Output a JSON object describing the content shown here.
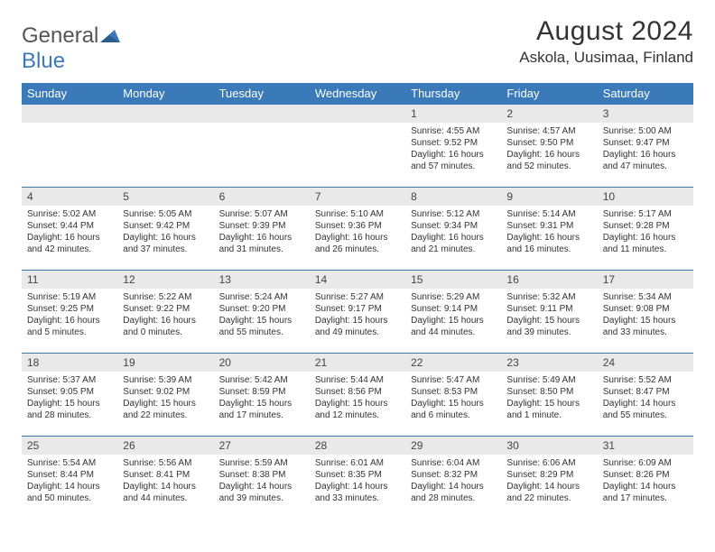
{
  "logo": {
    "text_general": "General",
    "text_blue": "Blue"
  },
  "header": {
    "month_title": "August 2024",
    "location": "Askola, Uusimaa, Finland"
  },
  "colors": {
    "header_bg": "#3a7ab8",
    "header_text": "#ffffff",
    "daynum_bg": "#e9e9e9",
    "row_border": "#3a7ab8",
    "body_text": "#333333"
  },
  "weekdays": [
    "Sunday",
    "Monday",
    "Tuesday",
    "Wednesday",
    "Thursday",
    "Friday",
    "Saturday"
  ],
  "weeks": [
    [
      null,
      null,
      null,
      null,
      {
        "n": "1",
        "sunrise": "4:55 AM",
        "sunset": "9:52 PM",
        "daylight": "16 hours and 57 minutes."
      },
      {
        "n": "2",
        "sunrise": "4:57 AM",
        "sunset": "9:50 PM",
        "daylight": "16 hours and 52 minutes."
      },
      {
        "n": "3",
        "sunrise": "5:00 AM",
        "sunset": "9:47 PM",
        "daylight": "16 hours and 47 minutes."
      }
    ],
    [
      {
        "n": "4",
        "sunrise": "5:02 AM",
        "sunset": "9:44 PM",
        "daylight": "16 hours and 42 minutes."
      },
      {
        "n": "5",
        "sunrise": "5:05 AM",
        "sunset": "9:42 PM",
        "daylight": "16 hours and 37 minutes."
      },
      {
        "n": "6",
        "sunrise": "5:07 AM",
        "sunset": "9:39 PM",
        "daylight": "16 hours and 31 minutes."
      },
      {
        "n": "7",
        "sunrise": "5:10 AM",
        "sunset": "9:36 PM",
        "daylight": "16 hours and 26 minutes."
      },
      {
        "n": "8",
        "sunrise": "5:12 AM",
        "sunset": "9:34 PM",
        "daylight": "16 hours and 21 minutes."
      },
      {
        "n": "9",
        "sunrise": "5:14 AM",
        "sunset": "9:31 PM",
        "daylight": "16 hours and 16 minutes."
      },
      {
        "n": "10",
        "sunrise": "5:17 AM",
        "sunset": "9:28 PM",
        "daylight": "16 hours and 11 minutes."
      }
    ],
    [
      {
        "n": "11",
        "sunrise": "5:19 AM",
        "sunset": "9:25 PM",
        "daylight": "16 hours and 5 minutes."
      },
      {
        "n": "12",
        "sunrise": "5:22 AM",
        "sunset": "9:22 PM",
        "daylight": "16 hours and 0 minutes."
      },
      {
        "n": "13",
        "sunrise": "5:24 AM",
        "sunset": "9:20 PM",
        "daylight": "15 hours and 55 minutes."
      },
      {
        "n": "14",
        "sunrise": "5:27 AM",
        "sunset": "9:17 PM",
        "daylight": "15 hours and 49 minutes."
      },
      {
        "n": "15",
        "sunrise": "5:29 AM",
        "sunset": "9:14 PM",
        "daylight": "15 hours and 44 minutes."
      },
      {
        "n": "16",
        "sunrise": "5:32 AM",
        "sunset": "9:11 PM",
        "daylight": "15 hours and 39 minutes."
      },
      {
        "n": "17",
        "sunrise": "5:34 AM",
        "sunset": "9:08 PM",
        "daylight": "15 hours and 33 minutes."
      }
    ],
    [
      {
        "n": "18",
        "sunrise": "5:37 AM",
        "sunset": "9:05 PM",
        "daylight": "15 hours and 28 minutes."
      },
      {
        "n": "19",
        "sunrise": "5:39 AM",
        "sunset": "9:02 PM",
        "daylight": "15 hours and 22 minutes."
      },
      {
        "n": "20",
        "sunrise": "5:42 AM",
        "sunset": "8:59 PM",
        "daylight": "15 hours and 17 minutes."
      },
      {
        "n": "21",
        "sunrise": "5:44 AM",
        "sunset": "8:56 PM",
        "daylight": "15 hours and 12 minutes."
      },
      {
        "n": "22",
        "sunrise": "5:47 AM",
        "sunset": "8:53 PM",
        "daylight": "15 hours and 6 minutes."
      },
      {
        "n": "23",
        "sunrise": "5:49 AM",
        "sunset": "8:50 PM",
        "daylight": "15 hours and 1 minute."
      },
      {
        "n": "24",
        "sunrise": "5:52 AM",
        "sunset": "8:47 PM",
        "daylight": "14 hours and 55 minutes."
      }
    ],
    [
      {
        "n": "25",
        "sunrise": "5:54 AM",
        "sunset": "8:44 PM",
        "daylight": "14 hours and 50 minutes."
      },
      {
        "n": "26",
        "sunrise": "5:56 AM",
        "sunset": "8:41 PM",
        "daylight": "14 hours and 44 minutes."
      },
      {
        "n": "27",
        "sunrise": "5:59 AM",
        "sunset": "8:38 PM",
        "daylight": "14 hours and 39 minutes."
      },
      {
        "n": "28",
        "sunrise": "6:01 AM",
        "sunset": "8:35 PM",
        "daylight": "14 hours and 33 minutes."
      },
      {
        "n": "29",
        "sunrise": "6:04 AM",
        "sunset": "8:32 PM",
        "daylight": "14 hours and 28 minutes."
      },
      {
        "n": "30",
        "sunrise": "6:06 AM",
        "sunset": "8:29 PM",
        "daylight": "14 hours and 22 minutes."
      },
      {
        "n": "31",
        "sunrise": "6:09 AM",
        "sunset": "8:26 PM",
        "daylight": "14 hours and 17 minutes."
      }
    ]
  ],
  "labels": {
    "sunrise": "Sunrise:",
    "sunset": "Sunset:",
    "daylight": "Daylight:"
  }
}
